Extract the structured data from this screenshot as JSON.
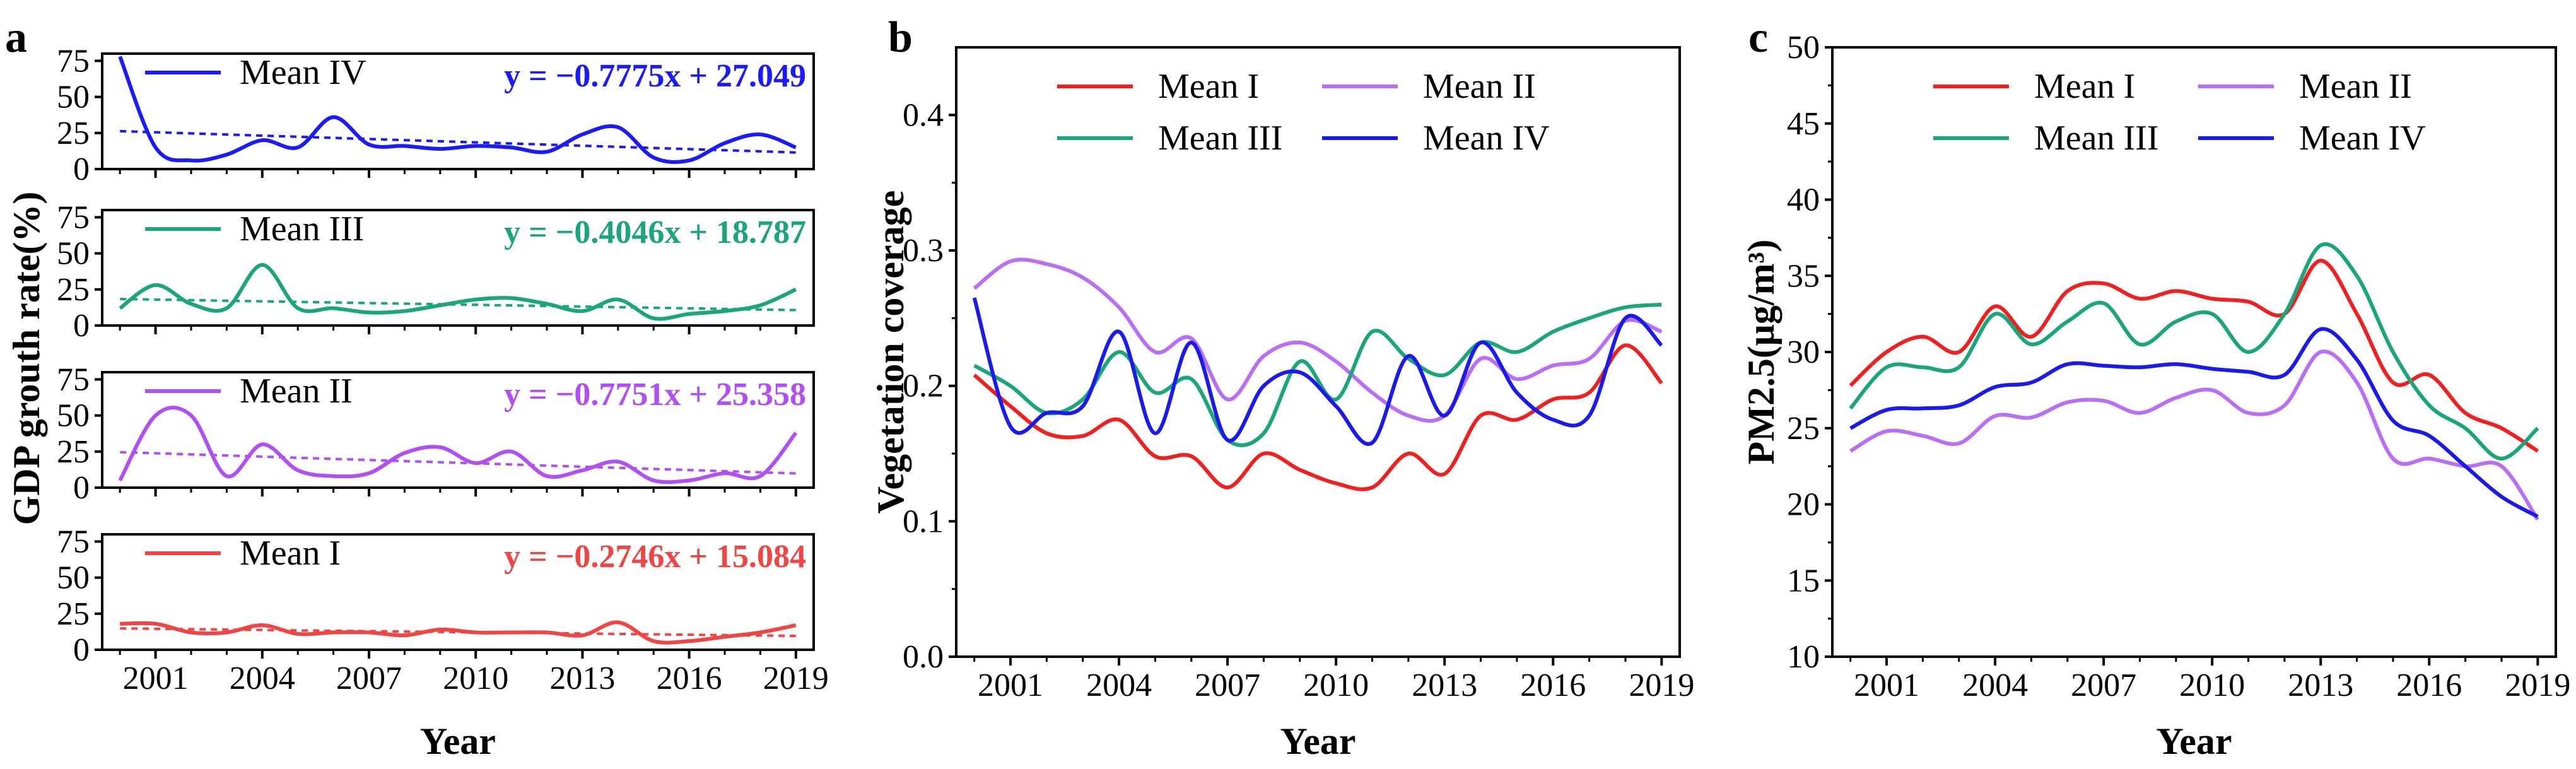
{
  "figure_panels": {
    "a": "a",
    "b": "b",
    "c": "c"
  },
  "chart_data": [
    {
      "type": "line",
      "panel": "a",
      "ylabel": "GDP grouth rate(%)",
      "xlabel": "Year",
      "x": [
        2000,
        2001,
        2002,
        2003,
        2004,
        2005,
        2006,
        2007,
        2008,
        2009,
        2010,
        2011,
        2012,
        2013,
        2014,
        2015,
        2016,
        2017,
        2018,
        2019
      ],
      "xticks": [
        2001,
        2004,
        2007,
        2010,
        2013,
        2016,
        2019
      ],
      "xlim": [
        1999.5,
        2019.5
      ],
      "subplots": [
        {
          "name": "Mean IV",
          "color": "#1a1aff",
          "ylim": [
            0,
            80
          ],
          "yticks": [
            0,
            25,
            50,
            75
          ],
          "values": [
            78,
            15,
            6,
            10,
            20,
            15,
            36,
            17,
            16,
            14,
            16,
            15,
            12,
            24,
            29,
            8,
            6,
            18,
            24,
            15
          ],
          "trend_equation": "y = −0.7775x + 27.049",
          "trend_slope": -0.7775,
          "trend_intercept": 27.049
        },
        {
          "name": "Mean III",
          "color": "#1aa67a",
          "ylim": [
            0,
            80
          ],
          "yticks": [
            0,
            25,
            50,
            75
          ],
          "values": [
            12,
            28,
            15,
            12,
            42,
            12,
            12,
            9,
            10,
            14,
            18,
            19,
            15,
            10,
            18,
            5,
            8,
            10,
            14,
            25
          ],
          "trend_equation": "y = −0.4046x + 18.787",
          "trend_slope": -0.4046,
          "trend_intercept": 18.787
        },
        {
          "name": "Mean II",
          "color": "#b04ff5",
          "ylim": [
            0,
            80
          ],
          "yticks": [
            0,
            25,
            50,
            75
          ],
          "values": [
            5,
            50,
            50,
            8,
            30,
            12,
            8,
            10,
            24,
            28,
            17,
            25,
            8,
            12,
            18,
            5,
            5,
            10,
            8,
            38
          ],
          "trend_equation": "y = −0.7751x + 25.358",
          "trend_slope": -0.7751,
          "trend_intercept": 25.358
        },
        {
          "name": "Mean I",
          "color": "#f04545",
          "ylim": [
            0,
            80
          ],
          "yticks": [
            0,
            25,
            50,
            75
          ],
          "values": [
            18,
            18,
            12,
            12,
            17,
            11,
            12,
            12,
            10,
            14,
            12,
            12,
            12,
            10,
            19,
            6,
            6,
            9,
            12,
            17
          ],
          "trend_equation": "y = −0.2746x + 15.084",
          "trend_slope": -0.2746,
          "trend_intercept": 15.084
        }
      ]
    },
    {
      "type": "line",
      "panel": "b",
      "ylabel": "Vegetation coverage",
      "xlabel": "Year",
      "x": [
        2000,
        2001,
        2002,
        2003,
        2004,
        2005,
        2006,
        2007,
        2008,
        2009,
        2010,
        2011,
        2012,
        2013,
        2014,
        2015,
        2016,
        2017,
        2018,
        2019
      ],
      "xticks": [
        2001,
        2004,
        2007,
        2010,
        2013,
        2016,
        2019
      ],
      "xlim": [
        1999.5,
        2019.5
      ],
      "ylim": [
        0.0,
        0.45
      ],
      "yticks": [
        "0.0",
        "0.1",
        "0.2",
        "0.3",
        "0.4"
      ],
      "legend": [
        "Mean I",
        "Mean II",
        "Mean III",
        "Mean IV"
      ],
      "series": [
        {
          "name": "Mean I",
          "color": "#f02020",
          "values": [
            0.208,
            0.185,
            0.165,
            0.163,
            0.175,
            0.148,
            0.148,
            0.125,
            0.15,
            0.138,
            0.128,
            0.125,
            0.15,
            0.135,
            0.178,
            0.175,
            0.19,
            0.195,
            0.23,
            0.202
          ]
        },
        {
          "name": "Mean II",
          "color": "#b86ff5",
          "values": [
            0.272,
            0.292,
            0.29,
            0.28,
            0.258,
            0.225,
            0.235,
            0.19,
            0.222,
            0.232,
            0.218,
            0.195,
            0.178,
            0.178,
            0.22,
            0.205,
            0.215,
            0.22,
            0.248,
            0.24
          ]
        },
        {
          "name": "Mean III",
          "color": "#1aa67a",
          "values": [
            0.215,
            0.2,
            0.18,
            0.19,
            0.225,
            0.195,
            0.205,
            0.16,
            0.165,
            0.218,
            0.19,
            0.24,
            0.22,
            0.208,
            0.232,
            0.225,
            0.24,
            0.25,
            0.258,
            0.26
          ]
        },
        {
          "name": "Mean IV",
          "color": "#1a1aee",
          "values": [
            0.265,
            0.17,
            0.18,
            0.185,
            0.24,
            0.165,
            0.232,
            0.16,
            0.2,
            0.21,
            0.185,
            0.158,
            0.222,
            0.178,
            0.232,
            0.195,
            0.175,
            0.178,
            0.25,
            0.23
          ]
        }
      ]
    },
    {
      "type": "line",
      "panel": "c",
      "ylabel": "PM2.5(μg/m³)",
      "xlabel": "Year",
      "x": [
        2000,
        2001,
        2002,
        2003,
        2004,
        2005,
        2006,
        2007,
        2008,
        2009,
        2010,
        2011,
        2012,
        2013,
        2014,
        2015,
        2016,
        2017,
        2018,
        2019
      ],
      "xticks": [
        2001,
        2004,
        2007,
        2010,
        2013,
        2016,
        2019
      ],
      "xlim": [
        1999.5,
        2019.5
      ],
      "ylim": [
        10,
        50
      ],
      "yticks": [
        10,
        15,
        20,
        25,
        30,
        35,
        40,
        45,
        50
      ],
      "legend": [
        "Mean I",
        "Mean II",
        "Mean III",
        "Mean IV"
      ],
      "series": [
        {
          "name": "Mean I",
          "color": "#f02020",
          "values": [
            27.8,
            30.0,
            31.0,
            30.0,
            33.0,
            31.0,
            34.0,
            34.5,
            33.5,
            34.0,
            33.5,
            33.3,
            32.5,
            36.0,
            32.5,
            28.0,
            28.5,
            26.0,
            25.0,
            23.5
          ]
        },
        {
          "name": "Mean II",
          "color": "#b86ff5",
          "values": [
            23.5,
            24.8,
            24.5,
            24.0,
            25.8,
            25.7,
            26.7,
            26.8,
            26.0,
            27.0,
            27.5,
            26.0,
            26.5,
            30.0,
            28.0,
            23.0,
            23.0,
            22.5,
            22.5,
            19.0
          ]
        },
        {
          "name": "Mean III",
          "color": "#1aa67a",
          "values": [
            26.3,
            29.0,
            29.0,
            29.0,
            32.5,
            30.5,
            32.0,
            33.2,
            30.5,
            32.0,
            32.5,
            30.0,
            32.5,
            37.0,
            35.0,
            30.0,
            26.5,
            25.0,
            23.0,
            25.0
          ]
        },
        {
          "name": "Mean IV",
          "color": "#1a1aee",
          "values": [
            25.0,
            26.2,
            26.3,
            26.5,
            27.7,
            28.0,
            29.2,
            29.1,
            29.0,
            29.2,
            28.9,
            28.7,
            28.5,
            31.5,
            29.5,
            25.5,
            24.5,
            22.5,
            20.5,
            19.2
          ]
        }
      ]
    }
  ]
}
